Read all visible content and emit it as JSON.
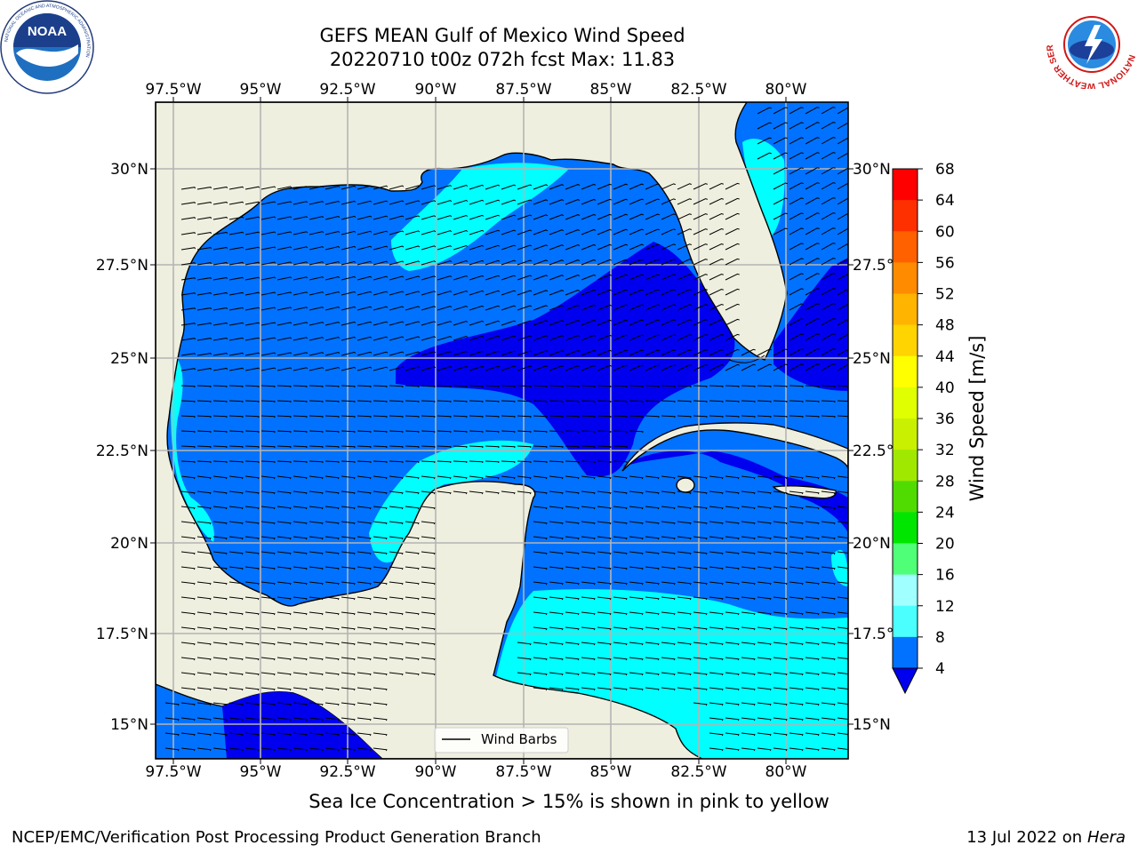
{
  "title": {
    "line1": "GEFS MEAN Gulf of Mexico Wind Speed",
    "line2": "20220710 t00z 072h fcst   Max: 11.83"
  },
  "logos": {
    "noaa_text": "NOAA",
    "noaa_ring": "NATIONAL OCEANIC AND ATMOSPHERIC ADMINISTRATION",
    "noaa_ring_bottom": "U.S. DEPARTMENT OF COMMERCE",
    "nws_ring": "NATIONAL WEATHER SERVICE"
  },
  "map": {
    "lon_labels": [
      "97.5°W",
      "95°W",
      "92.5°W",
      "90°W",
      "87.5°W",
      "85°W",
      "82.5°W",
      "80°W"
    ],
    "lat_labels": [
      "30°N",
      "27.5°N",
      "25°N",
      "22.5°N",
      "20°N",
      "17.5°N",
      "15°N"
    ],
    "lon_range": [
      -98,
      -78
    ],
    "lat_range": [
      14,
      31.6
    ],
    "legend_label": "Wind Barbs",
    "colors": {
      "land": "#efefdf",
      "grid": "#b4b4b4",
      "speed_4_8": "#0072ff",
      "speed_0_4": "#0000ef",
      "speed_8_12": "#00ffff"
    }
  },
  "colorbar": {
    "label": "Wind Speed [m/s]",
    "ticks": [
      "68",
      "64",
      "60",
      "56",
      "52",
      "48",
      "44",
      "40",
      "36",
      "32",
      "28",
      "24",
      "20",
      "16",
      "12",
      "8",
      "4"
    ],
    "colors": [
      "#ff0000",
      "#ff3000",
      "#ff6000",
      "#ff8c00",
      "#ffb400",
      "#ffd400",
      "#ffff00",
      "#e0ff00",
      "#c8f000",
      "#a0e800",
      "#50dc00",
      "#00e600",
      "#50ff78",
      "#a0ffff",
      "#4cffff",
      "#00ffff",
      "#0072ff"
    ],
    "underflow_color": "#0000ef"
  },
  "footer": {
    "note": "Sea Ice Concentration > 15% is shown in pink to yellow",
    "credit": "NCEP/EMC/Verification Post Processing Product Generation Branch",
    "date_prefix": "13 Jul 2022 on ",
    "machine": "Hera"
  }
}
